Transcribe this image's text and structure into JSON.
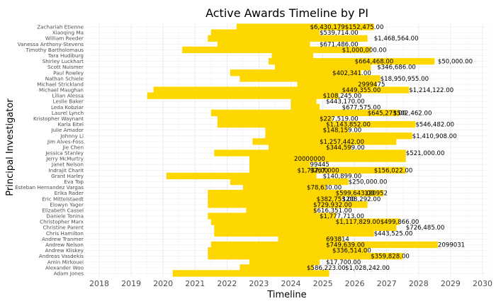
{
  "chart_data": {
    "type": "bar",
    "title": "Active Awards Timeline by PI",
    "xlabel": "Timeline",
    "ylabel": "Principal Investigator",
    "xlim": [
      2017.6,
      2030.2
    ],
    "x_ticks": [
      "2018",
      "2019",
      "2020",
      "2021",
      "2022",
      "2023",
      "2024",
      "2025",
      "2026",
      "2027",
      "2028",
      "2029",
      "2030"
    ],
    "bar_color": "#FFD700",
    "grid": true,
    "categories": [
      "Zachariah Etienne",
      "Xiaoqing Ma",
      "William Reeder",
      "Vanessa Anthony-Stevens",
      "Timothy Bartholomaus",
      "Tara Hudiburg",
      "Shirley Luckhart",
      "Scott Nuismer",
      "Paul Rowley",
      "Nathan Schiele",
      "Michael Strickland",
      "Michael Maughan",
      "Lilian Alessa",
      "Leslie Baker",
      "Leda Kobziar",
      "Laurel Lynch",
      "Kristopher Waynant",
      "Karla Eitel",
      "Julie Amador",
      "Johnny Li",
      "Jim Alves-Foss",
      "Jie Chen",
      "Jessica Stanley",
      "Jerry McMurtry",
      "Janet Nelson",
      "Indrajit Charit",
      "Grant Harley",
      "Eva Top",
      "Esteban Hernandez Vargas",
      "Erika Rader",
      "Eric Mittelstaedt",
      "Elowyn Yager",
      "Elizabeth Cassel",
      "Daniele Tonina",
      "Christopher Marx",
      "Christine Parent",
      "Chris Hamilton",
      "Andrew Tranmer",
      "Andrew Nelson",
      "Andrew Kliskey",
      "Andreas Vasdekis",
      "Amin Mirkouei",
      "Alexander Woo",
      "Adam Jones"
    ],
    "series": [
      {
        "start": [
          2022.3,
          2021.5,
          2021.4,
          2021.7,
          2020.6,
          2023.4,
          2023.3,
          2023.5,
          2022.1,
          2022.4,
          2024.2,
          2019.7,
          2019.5,
          2024.0,
          2024.0,
          2021.5,
          2021.7,
          2021.7,
          2023.2,
          2023.2,
          2022.8,
          2023.3,
          2021.6,
          2022.7,
          2022.7,
          2022.7,
          2020.1,
          2022.1,
          2022.5,
          2021.4,
          2021.4,
          2021.4,
          2022.6,
          2021.4,
          2021.5,
          2021.6,
          2021.6,
          2023.6,
          2021.5,
          2021.4,
          2021.4,
          2022.7,
          2022.4,
          2020.3
        ],
        "end": [
          2026.6,
          2024.9,
          2026.4,
          2024.6,
          2026.5,
          2024.7,
          2028.5,
          2026.5,
          2026.2,
          2026.8,
          2026.7,
          2027.7,
          2025.5,
          2024.8,
          2024.9,
          2027.4,
          2025.3,
          2027.9,
          2025.8,
          2027.8,
          2027.3,
          2025.9,
          2027.6,
          2027.6,
          2024.6,
          2027.6,
          2024.8,
          2025.8,
          2025.1,
          2026.9,
          2025.6,
          2026.4,
          2024.8,
          2025.4,
          2027.4,
          2027.3,
          2026.6,
          2025.6,
          2028.6,
          2026.4,
          2027.5,
          2024.9,
          2024.7,
          2025.2
        ]
      }
    ],
    "data_labels": [
      {
        "row": 0,
        "x": 2024.6,
        "text": "$6,430,179$152,475.00"
      },
      {
        "row": 1,
        "x": 2024.9,
        "text": "$539,714.00"
      },
      {
        "row": 2,
        "x": 2026.6,
        "text": "$1,468,564.00"
      },
      {
        "row": 3,
        "x": 2024.9,
        "text": "$671,486.00"
      },
      {
        "row": 4,
        "x": 2025.6,
        "text": "$1,000,000.00"
      },
      {
        "row": 6,
        "x": 2028.6,
        "text": "$50,000.00"
      },
      {
        "row": 6,
        "x": 2026.0,
        "text": "$664,468.00"
      },
      {
        "row": 7,
        "x": 2026.7,
        "text": "$346,686.00"
      },
      {
        "row": 8,
        "x": 2025.3,
        "text": "$402,341.00"
      },
      {
        "row": 9,
        "x": 2026.8,
        "text": "$18,950,955.00"
      },
      {
        "row": 10,
        "x": 2026.1,
        "text": "2999475"
      },
      {
        "row": 11,
        "x": 2025.6,
        "text": "$449,355.00"
      },
      {
        "row": 11,
        "x": 2027.7,
        "text": "$1,214,122.00"
      },
      {
        "row": 12,
        "x": 2025.0,
        "text": "$108,245.00"
      },
      {
        "row": 13,
        "x": 2025.1,
        "text": "$443,170.00"
      },
      {
        "row": 14,
        "x": 2025.6,
        "text": "$677,575.00"
      },
      {
        "row": 15,
        "x": 2026.4,
        "text": "$645,273.00"
      },
      {
        "row": 15,
        "x": 2027.2,
        "text": "$502,462.00"
      },
      {
        "row": 16,
        "x": 2024.9,
        "text": "$227,519.00"
      },
      {
        "row": 17,
        "x": 2025.1,
        "text": "$1,143,852.00"
      },
      {
        "row": 17,
        "x": 2027.9,
        "text": "$546,482.00"
      },
      {
        "row": 18,
        "x": 2025.0,
        "text": "$148,159.00"
      },
      {
        "row": 19,
        "x": 2027.8,
        "text": "$1,410,908.00"
      },
      {
        "row": 20,
        "x": 2024.9,
        "text": "$1,257,442.00"
      },
      {
        "row": 21,
        "x": 2025.1,
        "text": "$344,599.00"
      },
      {
        "row": 22,
        "x": 2027.6,
        "text": "$521,000.00"
      },
      {
        "row": 23,
        "x": 2024.1,
        "text": "20000000"
      },
      {
        "row": 24,
        "x": 2024.6,
        "text": "99445"
      },
      {
        "row": 25,
        "x": 2024.2,
        "text": "$1,737,00"
      },
      {
        "row": 25,
        "x": 2024.6,
        "text": "$267,000"
      },
      {
        "row": 25,
        "x": 2026.6,
        "text": "$156,022.00"
      },
      {
        "row": 26,
        "x": 2025.0,
        "text": "$140,899.00"
      },
      {
        "row": 27,
        "x": 2025.8,
        "text": "$250,000.00"
      },
      {
        "row": 28,
        "x": 2024.5,
        "text": "$78,630.00"
      },
      {
        "row": 29,
        "x": 2025.4,
        "text": "$599,643.00"
      },
      {
        "row": 29,
        "x": 2026.3,
        "text": "120952"
      },
      {
        "row": 30,
        "x": 2024.8,
        "text": "$382,753.00"
      },
      {
        "row": 30,
        "x": 2025.6,
        "text": "$208,292.00"
      },
      {
        "row": 31,
        "x": 2024.7,
        "text": "$729,932.00"
      },
      {
        "row": 32,
        "x": 2024.7,
        "text": "$616,351.00"
      },
      {
        "row": 33,
        "x": 2024.9,
        "text": "$1,777,713.00"
      },
      {
        "row": 34,
        "x": 2025.4,
        "text": "$1,117,829.00"
      },
      {
        "row": 34,
        "x": 2026.8,
        "text": "$499,866.00"
      },
      {
        "row": 35,
        "x": 2027.6,
        "text": "$726,485.00"
      },
      {
        "row": 36,
        "x": 2026.6,
        "text": "$443,525.00"
      },
      {
        "row": 37,
        "x": 2025.1,
        "text": "693814"
      },
      {
        "row": 38,
        "x": 2025.1,
        "text": "$749,639.00"
      },
      {
        "row": 38,
        "x": 2028.6,
        "text": "2099031"
      },
      {
        "row": 39,
        "x": 2025.3,
        "text": "$336,514.00"
      },
      {
        "row": 40,
        "x": 2026.5,
        "text": "$359,828.00"
      },
      {
        "row": 41,
        "x": 2025.1,
        "text": "$17,700.00"
      },
      {
        "row": 42,
        "x": 2024.5,
        "text": "$586,223.00"
      },
      {
        "row": 42,
        "x": 2025.7,
        "text": "$1,028,242.00"
      }
    ]
  }
}
